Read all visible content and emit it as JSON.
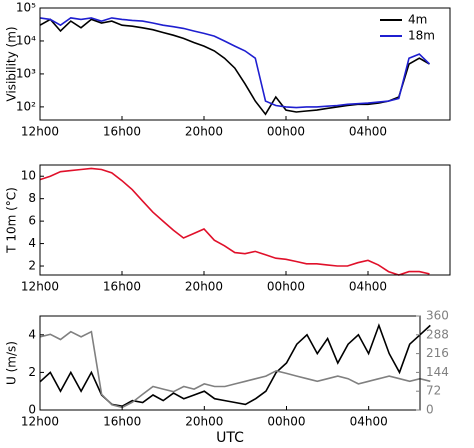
{
  "chart_data": [
    {
      "type": "line",
      "ylabel": "Visibility (m)",
      "log_y": true,
      "legend": "upper right",
      "x": [
        12,
        12.5,
        13,
        13.5,
        14,
        14.5,
        15,
        15.5,
        16,
        16.5,
        17,
        17.5,
        18,
        18.5,
        19,
        19.5,
        20,
        20.5,
        21,
        21.5,
        22,
        22.5,
        23,
        23.5,
        24,
        24.5,
        25,
        25.5,
        26,
        26.5,
        27,
        27.5,
        28,
        28.5,
        29,
        29.5,
        30,
        30.5,
        31
      ],
      "series": [
        {
          "name": "4m",
          "color": "#000000",
          "values": [
            30000,
            45000,
            20000,
            40000,
            25000,
            45000,
            35000,
            40000,
            30000,
            28000,
            25000,
            22000,
            18000,
            15000,
            12000,
            9000,
            7000,
            5000,
            3000,
            1500,
            500,
            150,
            60,
            200,
            80,
            70,
            75,
            80,
            90,
            100,
            110,
            120,
            120,
            130,
            150,
            200,
            2000,
            3000,
            2000
          ]
        },
        {
          "name": "18m",
          "color": "#1f1fd0",
          "values": [
            50000,
            45000,
            30000,
            50000,
            45000,
            50000,
            40000,
            50000,
            45000,
            42000,
            40000,
            35000,
            30000,
            27000,
            24000,
            20000,
            17000,
            14000,
            10000,
            7000,
            5000,
            3000,
            150,
            110,
            100,
            95,
            100,
            100,
            105,
            110,
            120,
            125,
            130,
            140,
            150,
            180,
            3000,
            4000,
            2000
          ]
        }
      ],
      "xlim": [
        12,
        32
      ],
      "ylim": [
        40,
        100000
      ],
      "xticks": [
        {
          "value": 12,
          "label": "12h00"
        },
        {
          "value": 16,
          "label": "16h00"
        },
        {
          "value": 20,
          "label": "20h00"
        },
        {
          "value": 24,
          "label": "00h00"
        },
        {
          "value": 28,
          "label": "04h00"
        }
      ],
      "yticks": [
        {
          "value": 100,
          "label": "10²"
        },
        {
          "value": 1000,
          "label": "10³"
        },
        {
          "value": 10000,
          "label": "10⁴"
        },
        {
          "value": 100000,
          "label": "10⁵"
        }
      ]
    },
    {
      "type": "line",
      "ylabel": "T 10m (°C)",
      "x": [
        12,
        12.5,
        13,
        13.5,
        14,
        14.5,
        15,
        15.5,
        16,
        16.5,
        17,
        17.5,
        18,
        18.5,
        19,
        19.5,
        20,
        20.5,
        21,
        21.5,
        22,
        22.5,
        23,
        23.5,
        24,
        24.5,
        25,
        25.5,
        26,
        26.5,
        27,
        27.5,
        28,
        28.5,
        29,
        29.5,
        30,
        30.5,
        31
      ],
      "series": [
        {
          "color": "#e0102a",
          "values": [
            9.7,
            10,
            10.4,
            10.5,
            10.6,
            10.7,
            10.6,
            10.3,
            9.6,
            8.8,
            7.8,
            6.8,
            6,
            5.2,
            4.5,
            4.9,
            5.3,
            4.3,
            3.8,
            3.2,
            3.1,
            3.3,
            3,
            2.7,
            2.6,
            2.4,
            2.2,
            2.2,
            2.1,
            2,
            2,
            2.3,
            2.5,
            2.1,
            1.5,
            1.2,
            1.5,
            1.5,
            1.3
          ]
        }
      ],
      "xlim": [
        12,
        32
      ],
      "ylim": [
        1.2,
        11
      ],
      "xticks": [
        {
          "value": 12,
          "label": "12h00"
        },
        {
          "value": 16,
          "label": "16h00"
        },
        {
          "value": 20,
          "label": "20h00"
        },
        {
          "value": 24,
          "label": "00h00"
        },
        {
          "value": 28,
          "label": "04h00"
        }
      ],
      "yticks": [
        2,
        4,
        6,
        8,
        10
      ]
    },
    {
      "type": "line",
      "ylabel": "U (m/s)",
      "xlabel": "UTC",
      "x": [
        12,
        12.5,
        13,
        13.5,
        14,
        14.5,
        15,
        15.5,
        16,
        16.5,
        17,
        17.5,
        18,
        18.5,
        19,
        19.5,
        20,
        20.5,
        21,
        21.5,
        22,
        22.5,
        23,
        23.5,
        24,
        24.5,
        25,
        25.5,
        26,
        26.5,
        27,
        27.5,
        28,
        28.5,
        29,
        29.5,
        30,
        30.5,
        31
      ],
      "series": [
        {
          "color": "#000000",
          "values": [
            1.5,
            2,
            1,
            2,
            1,
            2,
            0.8,
            0.3,
            0.2,
            0.5,
            0.4,
            0.8,
            0.5,
            0.9,
            0.6,
            0.8,
            1,
            0.6,
            0.5,
            0.4,
            0.3,
            0.6,
            1,
            2,
            2.5,
            3.5,
            4,
            3,
            3.8,
            2.5,
            3.5,
            4,
            3,
            4.5,
            3,
            2,
            3.5,
            4,
            4.5
          ]
        },
        {
          "color": "#808080",
          "axis": "y2",
          "values": [
            280,
            290,
            270,
            300,
            280,
            300,
            60,
            20,
            10,
            30,
            60,
            90,
            80,
            70,
            90,
            80,
            100,
            90,
            90,
            100,
            110,
            120,
            130,
            150,
            140,
            130,
            120,
            110,
            120,
            130,
            120,
            100,
            110,
            120,
            130,
            120,
            110,
            120,
            110
          ]
        }
      ],
      "xlim": [
        12,
        30.5
      ],
      "ylim": [
        0,
        5
      ],
      "y2lim": [
        0,
        360
      ],
      "xticks": [
        {
          "value": 12,
          "label": "12h00"
        },
        {
          "value": 16,
          "label": "16h00"
        },
        {
          "value": 20,
          "label": "20h00"
        },
        {
          "value": 24,
          "label": "00h00"
        },
        {
          "value": 28,
          "label": "04h00"
        }
      ],
      "yticks": [
        0,
        2,
        4
      ],
      "y2ticks": [
        0,
        72,
        144,
        216,
        288,
        360
      ]
    }
  ]
}
